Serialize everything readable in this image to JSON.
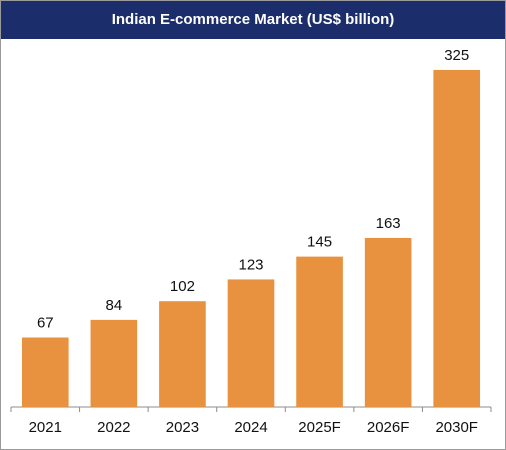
{
  "chart_data": {
    "type": "bar",
    "title": "Indian E-commerce Market (US$ billion)",
    "categories": [
      "2021",
      "2022",
      "2023",
      "2024",
      "2025F",
      "2026F",
      "2030F"
    ],
    "values": [
      67,
      84,
      102,
      123,
      145,
      163,
      325
    ],
    "xlabel": "",
    "ylabel": "",
    "ylim": [
      0,
      350
    ],
    "grid": false,
    "legend": "none",
    "bar_color": "#e8913e",
    "axis_color": "#8c8c8c",
    "title_bg_color": "#1c2d6b"
  }
}
